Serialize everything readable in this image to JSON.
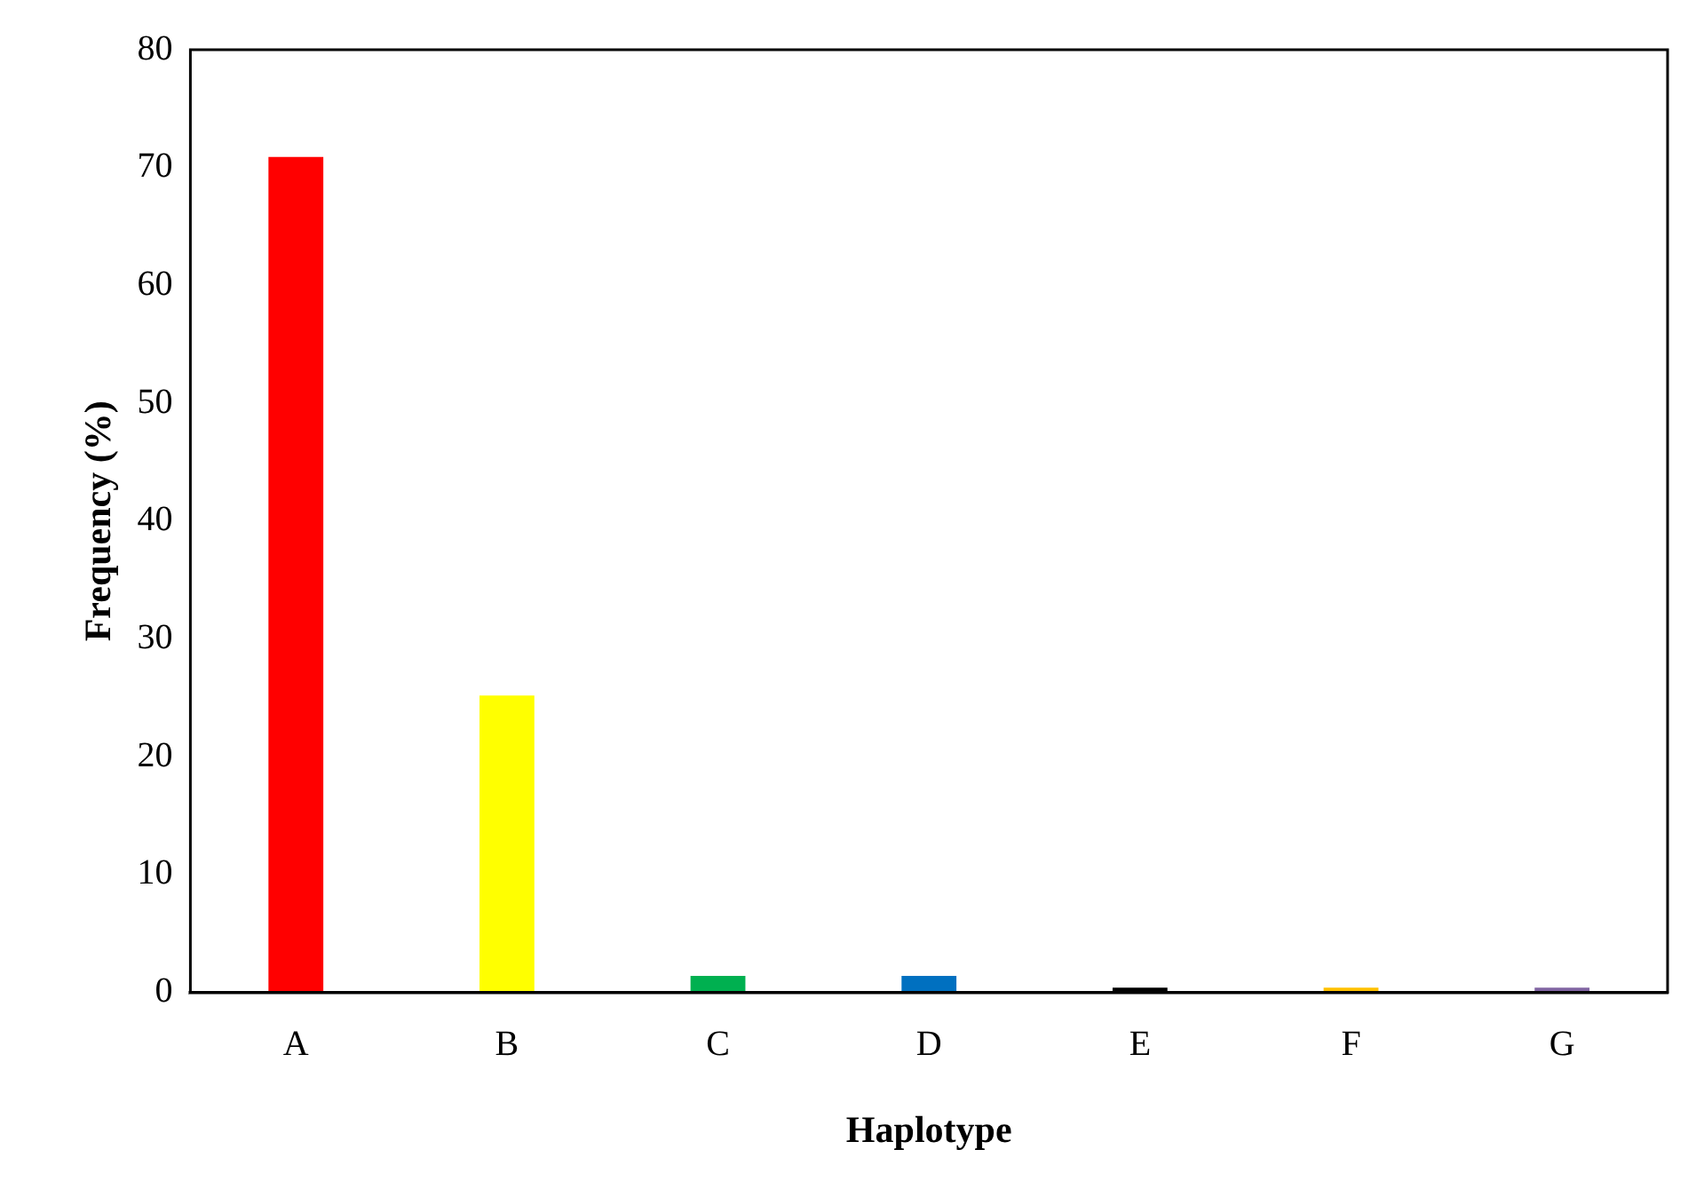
{
  "chart_data": {
    "type": "bar",
    "xlabel": "Haplotype",
    "ylabel": "Frequency (%)",
    "categories": [
      "A",
      "B",
      "C",
      "D",
      "E",
      "F",
      "G"
    ],
    "values": [
      70.9,
      25.2,
      1.4,
      1.4,
      0.4,
      0.4,
      0.4
    ],
    "colors": [
      "#ff0000",
      "#ffff00",
      "#00b050",
      "#0070c0",
      "#000000",
      "#ffc000",
      "#8064a2"
    ],
    "ylim": [
      0,
      80
    ],
    "yticks": [
      0,
      10,
      20,
      30,
      40,
      50,
      60,
      70,
      80
    ],
    "grid": false,
    "legend": false
  }
}
